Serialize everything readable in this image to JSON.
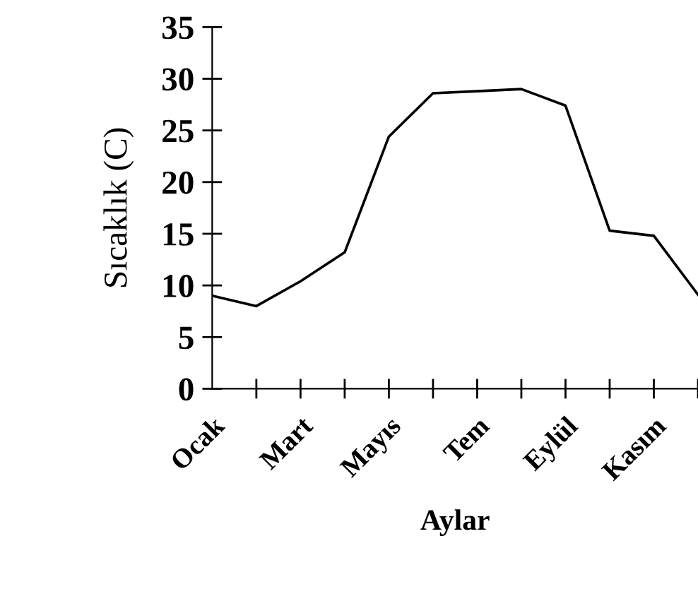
{
  "chart_data": {
    "type": "line",
    "xlabel": "Aylar",
    "ylabel": "Sıcaklık (C)",
    "categories": [
      "Ocak",
      null,
      "Mart",
      null,
      "Mayıs",
      null,
      "Tem",
      null,
      "Eylül",
      null,
      "Kasım",
      null
    ],
    "series": [
      {
        "color": "#000000",
        "values": [
          9.0,
          8.0,
          10.4,
          13.2,
          24.4,
          28.6,
          28.8,
          29.0,
          27.4,
          15.3,
          14.8,
          9.1
        ]
      }
    ],
    "ylim": [
      0,
      35
    ],
    "yticks": [
      0,
      5,
      10,
      15,
      20,
      25,
      30,
      35
    ],
    "grid": false,
    "legend": false,
    "marker": "none",
    "line_style": "solid"
  }
}
